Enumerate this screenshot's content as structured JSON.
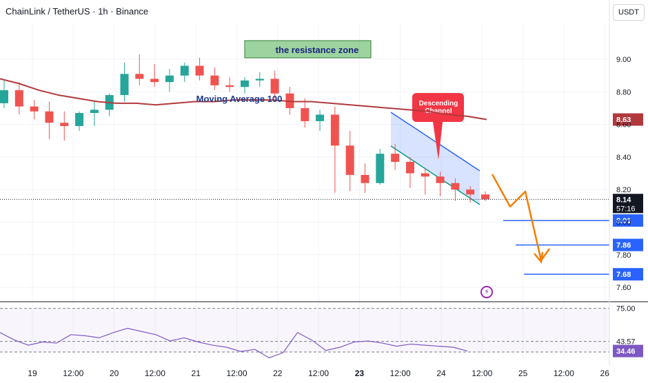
{
  "header": {
    "title": "ChainLink / TetherUS · 1h · Binance",
    "currency": "USDT"
  },
  "chart_data": {
    "type": "candlestick",
    "y_axis": {
      "ticks": [
        "9.00",
        "8.80",
        "8.60",
        "8.40",
        "8.20",
        "8.00",
        "7.80",
        "7.60"
      ],
      "ylim": [
        7.52,
        9.22
      ]
    },
    "x_axis": {
      "ticks": [
        "19",
        "12:00",
        "20",
        "12:00",
        "21",
        "12:00",
        "22",
        "12:00",
        "23",
        "12:00",
        "24",
        "12:00",
        "25",
        "12:00",
        "26"
      ]
    },
    "grid": true,
    "price": {
      "open": [
        8.73,
        8.81,
        8.71,
        8.68,
        8.61,
        8.59,
        8.67,
        8.69,
        8.78,
        8.91,
        8.88,
        8.86,
        8.9,
        8.96,
        8.9,
        8.84,
        8.83,
        8.87,
        8.88,
        8.79,
        8.7,
        8.62,
        8.66,
        8.47,
        8.29,
        8.24,
        8.42,
        8.37,
        8.3,
        8.28,
        8.24,
        8.2,
        8.17
      ],
      "high": [
        8.87,
        8.86,
        8.75,
        8.74,
        8.68,
        8.68,
        8.74,
        8.79,
        8.98,
        9.03,
        8.97,
        8.94,
        8.98,
        9.01,
        8.95,
        8.89,
        8.89,
        8.92,
        8.93,
        8.83,
        8.76,
        8.69,
        8.71,
        8.56,
        8.36,
        8.45,
        8.48,
        8.4,
        8.33,
        8.31,
        8.27,
        8.22,
        8.19
      ],
      "low": [
        8.7,
        8.66,
        8.63,
        8.51,
        8.5,
        8.56,
        8.59,
        8.65,
        8.74,
        8.84,
        8.83,
        8.8,
        8.86,
        8.87,
        8.81,
        8.8,
        8.79,
        8.83,
        8.76,
        8.66,
        8.58,
        8.56,
        8.18,
        8.19,
        8.18,
        8.23,
        8.32,
        8.21,
        8.17,
        8.16,
        8.13,
        8.12,
        8.13
      ],
      "close": [
        8.81,
        8.71,
        8.68,
        8.61,
        8.59,
        8.67,
        8.69,
        8.78,
        8.91,
        8.88,
        8.86,
        8.9,
        8.96,
        8.9,
        8.84,
        8.83,
        8.87,
        8.88,
        8.79,
        8.7,
        8.62,
        8.66,
        8.47,
        8.29,
        8.24,
        8.42,
        8.37,
        8.3,
        8.28,
        8.24,
        8.2,
        8.17,
        8.14
      ]
    },
    "ma100": {
      "name": "Moving Average 100",
      "values": [
        8.88,
        8.85,
        8.81,
        8.78,
        8.76,
        8.74,
        8.73,
        8.73,
        8.72,
        8.73,
        8.74,
        8.74,
        8.75,
        8.75,
        8.75,
        8.74,
        8.74,
        8.73,
        8.72,
        8.71,
        8.7,
        8.69,
        8.68,
        8.66,
        8.65,
        8.63
      ]
    },
    "rsi": {
      "levels": [
        "75.00",
        "43.57",
        "33.48"
      ],
      "current": "34.46",
      "values": [
        52,
        45,
        40,
        43,
        42,
        50,
        49,
        47,
        52,
        56,
        53,
        50,
        44,
        47,
        43,
        40,
        38,
        34,
        36,
        28,
        33,
        52,
        45,
        35,
        38,
        43,
        44,
        42,
        39,
        41,
        40,
        39,
        38,
        34.46
      ]
    },
    "price_labels": {
      "ma": "8.63",
      "last": "8.14",
      "countdown": "57:16",
      "targets": [
        "8.01",
        "7.86",
        "7.68"
      ]
    },
    "annotations": {
      "resistance": "the resistance zone",
      "ma": "Moving Average 100",
      "channel": "Descending Channel"
    },
    "colors": {
      "up": "#26a69a",
      "down": "#ef5350",
      "ma": "#b2383c",
      "target": "#2962ff",
      "arrow": "#f57c00",
      "rsi": "#7e57c2",
      "resistance": "#4caf50"
    }
  }
}
